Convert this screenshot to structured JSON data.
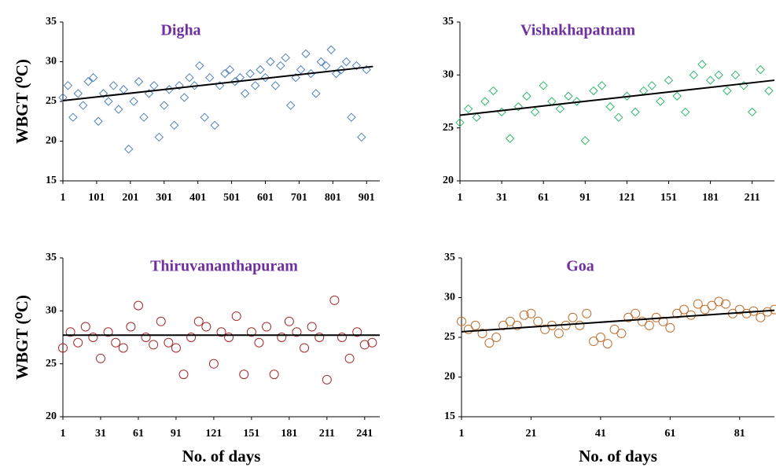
{
  "chart_data": [
    {
      "type": "scatter",
      "title": "Digha",
      "ylabel": "WBGT (⁰C)",
      "color": "#4f81bd",
      "marker": "diamond",
      "x": [
        1,
        16,
        31,
        46,
        61,
        76,
        91,
        106,
        121,
        136,
        151,
        166,
        181,
        196,
        211,
        226,
        241,
        256,
        271,
        286,
        301,
        316,
        331,
        346,
        361,
        376,
        391,
        406,
        421,
        436,
        451,
        466,
        481,
        496,
        511,
        526,
        541,
        556,
        571,
        586,
        601,
        616,
        631,
        646,
        661,
        676,
        691,
        706,
        721,
        736,
        751,
        766,
        781,
        796,
        811,
        826,
        841,
        856,
        871,
        886,
        901
      ],
      "values": [
        25.5,
        27,
        23,
        26,
        24.5,
        27.5,
        28,
        22.5,
        26,
        25,
        27,
        24,
        26.5,
        19,
        25,
        27.5,
        23,
        26,
        27,
        20.5,
        24.5,
        26.5,
        22,
        27,
        25.5,
        28,
        27,
        29.5,
        23,
        28,
        22,
        27,
        28.5,
        29,
        27.5,
        28,
        26,
        28.5,
        27,
        29,
        28,
        30,
        27,
        29.5,
        30.5,
        24.5,
        28,
        29,
        31,
        28.5,
        26,
        30,
        29.5,
        31.5,
        28.5,
        29,
        30,
        23,
        29.5,
        20.5,
        29
      ],
      "trend": {
        "x": [
          1,
          920
        ],
        "values": [
          25.1,
          29.4
        ]
      },
      "xlim": [
        1,
        940
      ],
      "ylim": [
        15,
        35
      ],
      "xticks": [
        1,
        101,
        201,
        301,
        401,
        501,
        601,
        701,
        801,
        901
      ],
      "yticks": [
        15,
        20,
        25,
        30,
        35
      ]
    },
    {
      "type": "scatter",
      "title": "Vishakhapatnam",
      "color": "#2eb86b",
      "marker": "diamond",
      "x": [
        1,
        7,
        13,
        19,
        25,
        31,
        37,
        43,
        49,
        55,
        61,
        67,
        73,
        79,
        85,
        91,
        97,
        103,
        109,
        115,
        121,
        127,
        133,
        139,
        145,
        151,
        157,
        163,
        169,
        175,
        181,
        187,
        193,
        199,
        205,
        211,
        217,
        223
      ],
      "values": [
        25.5,
        26.8,
        26,
        27.5,
        28.5,
        26.5,
        24,
        27,
        28,
        26.5,
        29,
        27.5,
        26.8,
        28,
        27.5,
        23.8,
        28.5,
        29,
        27,
        26,
        28,
        26.5,
        28.5,
        29,
        27.5,
        29.5,
        28,
        26.5,
        30,
        31,
        29.5,
        30,
        28.5,
        30,
        29,
        26.5,
        30.5,
        28.5
      ],
      "trend": {
        "x": [
          1,
          227
        ],
        "values": [
          26.2,
          29.5
        ]
      },
      "xlim": [
        1,
        227
      ],
      "ylim": [
        20,
        35
      ],
      "xticks": [
        1,
        31,
        61,
        91,
        121,
        151,
        181,
        211
      ],
      "yticks": [
        20,
        25,
        30,
        35
      ]
    },
    {
      "type": "scatter",
      "title": "Thiruvananthapuram",
      "ylabel": "WBGT (⁰C)",
      "xlabel": "No. of days",
      "color": "#a52a2a",
      "marker": "circle",
      "x": [
        1,
        7,
        13,
        19,
        25,
        31,
        37,
        43,
        49,
        55,
        61,
        67,
        73,
        79,
        85,
        91,
        97,
        103,
        109,
        115,
        121,
        127,
        133,
        139,
        145,
        151,
        157,
        163,
        169,
        175,
        181,
        187,
        193,
        199,
        205,
        211,
        217,
        223,
        229,
        235,
        241,
        247
      ],
      "values": [
        26.5,
        28,
        27,
        28.5,
        27.5,
        25.5,
        28,
        27,
        26.5,
        28.5,
        30.5,
        27.5,
        26.8,
        29,
        27,
        26.5,
        24,
        27.5,
        29,
        28.5,
        25,
        28,
        27.5,
        29.5,
        24,
        28,
        27,
        28.5,
        24,
        27.5,
        29,
        28,
        26.5,
        28.5,
        27.5,
        23.5,
        31,
        27.5,
        25.5,
        28,
        26.8,
        27
      ],
      "trend": {
        "x": [
          1,
          253
        ],
        "values": [
          27.7,
          27.7
        ]
      },
      "xlim": [
        1,
        253
      ],
      "ylim": [
        20,
        35
      ],
      "xticks": [
        1,
        31,
        61,
        91,
        121,
        151,
        181,
        211,
        241
      ],
      "yticks": [
        20,
        25,
        30,
        35
      ]
    },
    {
      "type": "scatter",
      "title": "Goa",
      "xlabel": "No. of days",
      "color": "#c07030",
      "marker": "circle",
      "x": [
        1,
        3,
        5,
        7,
        9,
        11,
        13,
        15,
        17,
        19,
        21,
        23,
        25,
        27,
        29,
        31,
        33,
        35,
        37,
        39,
        41,
        43,
        45,
        47,
        49,
        51,
        53,
        55,
        57,
        59,
        61,
        63,
        65,
        67,
        69,
        71,
        73,
        75,
        77,
        79,
        81,
        83,
        85,
        87,
        89,
        91
      ],
      "values": [
        27,
        26,
        26.5,
        25.5,
        24.3,
        25,
        26.5,
        27,
        26.5,
        27.8,
        28,
        27,
        26,
        26.5,
        25.5,
        26.5,
        27.5,
        26.5,
        28,
        24.5,
        25,
        24.2,
        26,
        25.5,
        27.5,
        28,
        27,
        26.5,
        27.5,
        27,
        26.2,
        28,
        28.5,
        27.8,
        29.2,
        28.5,
        29,
        29.5,
        29.2,
        28,
        28.5,
        28,
        28.3,
        27.5,
        28.2,
        28.5
      ],
      "trend": {
        "x": [
          1,
          91
        ],
        "values": [
          25.7,
          28.4
        ]
      },
      "xlim": [
        1,
        91
      ],
      "ylim": [
        15,
        35
      ],
      "xticks": [
        1,
        21,
        41,
        61,
        81
      ],
      "yticks": [
        15,
        20,
        25,
        30,
        35
      ]
    }
  ]
}
